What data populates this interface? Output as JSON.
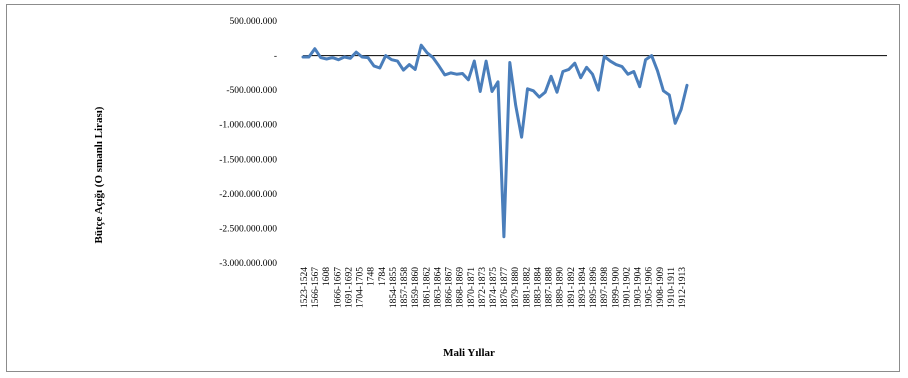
{
  "chart_data": {
    "type": "line",
    "title": "",
    "xlabel": "Mali Yıllar",
    "ylabel": "Bütçe Açığı (O smanlı Lirası)",
    "ylim": [
      -3000000000,
      500000000
    ],
    "y_ticks": [
      {
        "value": 500000000,
        "label": "500.000.000"
      },
      {
        "value": 0,
        "label": "-"
      },
      {
        "value": -500000000,
        "label": "-500.000.000"
      },
      {
        "value": -1000000000,
        "label": "-1.000.000.000"
      },
      {
        "value": -1500000000,
        "label": "-1.500.000.000"
      },
      {
        "value": -2000000000,
        "label": "-2.000.000.000"
      },
      {
        "value": -2500000000,
        "label": "-2.500.000.000"
      },
      {
        "value": -3000000000,
        "label": "-3.000.000.000"
      }
    ],
    "x_tick_labels": [
      "1523-1524",
      "1566-1567",
      "1608",
      "1666-1667",
      "1691-1692",
      "1704-1705",
      "1748",
      "1784",
      "1854-1855",
      "1857-1858",
      "1859-1860",
      "1861-1862",
      "1863-1864",
      "1866-1867",
      "1868-1869",
      "1870-1871",
      "1872-1873",
      "1874-1875",
      "1876-1877",
      "1879-1880",
      "1881-1882",
      "1883-1884",
      "1887-1888",
      "1889-1890",
      "1891-1892",
      "1893-1894",
      "1895-1896",
      "1897-1898",
      "1899-1900",
      "1901-1902",
      "1903-1904",
      "1905-1906",
      "1908-1909",
      "1910-1911",
      "1912-1913"
    ],
    "grid": false,
    "legend": "none",
    "line_color": "#4a7ebb",
    "series": [
      {
        "values": [
          -20000000,
          -20000000,
          100000000,
          -30000000,
          -50000000,
          -30000000,
          -60000000,
          -20000000,
          -40000000,
          50000000,
          -20000000,
          -30000000,
          -150000000,
          -180000000,
          0,
          -60000000,
          -80000000,
          -210000000,
          -130000000,
          -200000000,
          150000000,
          40000000,
          -30000000,
          -150000000,
          -280000000,
          -250000000,
          -270000000,
          -260000000,
          -350000000,
          -80000000,
          -520000000,
          -80000000,
          -520000000,
          -380000000,
          -2620000000,
          -100000000,
          -720000000,
          -1180000000,
          -480000000,
          -510000000,
          -600000000,
          -530000000,
          -300000000,
          -530000000,
          -230000000,
          -200000000,
          -110000000,
          -320000000,
          -170000000,
          -270000000,
          -500000000,
          -10000000,
          -80000000,
          -130000000,
          -160000000,
          -270000000,
          -230000000,
          -450000000,
          -60000000,
          0,
          -220000000,
          -510000000,
          -570000000,
          -980000000,
          -780000000,
          -430000000
        ]
      }
    ]
  }
}
